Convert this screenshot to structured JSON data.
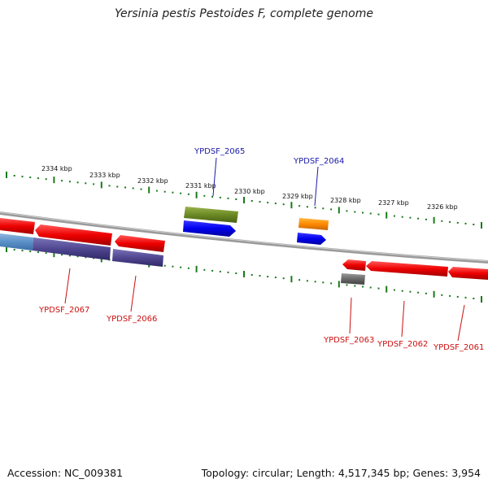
{
  "title": "Yersinia pestis Pestoides F, complete genome",
  "footer": {
    "accession": "Accession: NC_009381",
    "summary": "Topology: circular; Length: 4,517,345 bp; Genes: 3,954"
  },
  "colors": {
    "forward_label": "#1a1aa8",
    "reverse_label": "#cc1010",
    "tick": "#1a7a1a",
    "backbone": "#8a8a8a"
  },
  "scale": {
    "unit": "kbp",
    "labels": [
      "2334 kbp",
      "2333 kbp",
      "2332 kbp",
      "2331 kbp",
      "2330 kbp",
      "2329 kbp",
      "2328 kbp",
      "2327 kbp",
      "2326 kbp"
    ]
  },
  "gene_labels": {
    "forward": [
      "YPDSF_2065",
      "YPDSF_2064"
    ],
    "reverse": [
      "YPDSF_2067",
      "YPDSF_2066",
      "YPDSF_2063",
      "YPDSF_2062",
      "YPDSF_2061"
    ]
  }
}
